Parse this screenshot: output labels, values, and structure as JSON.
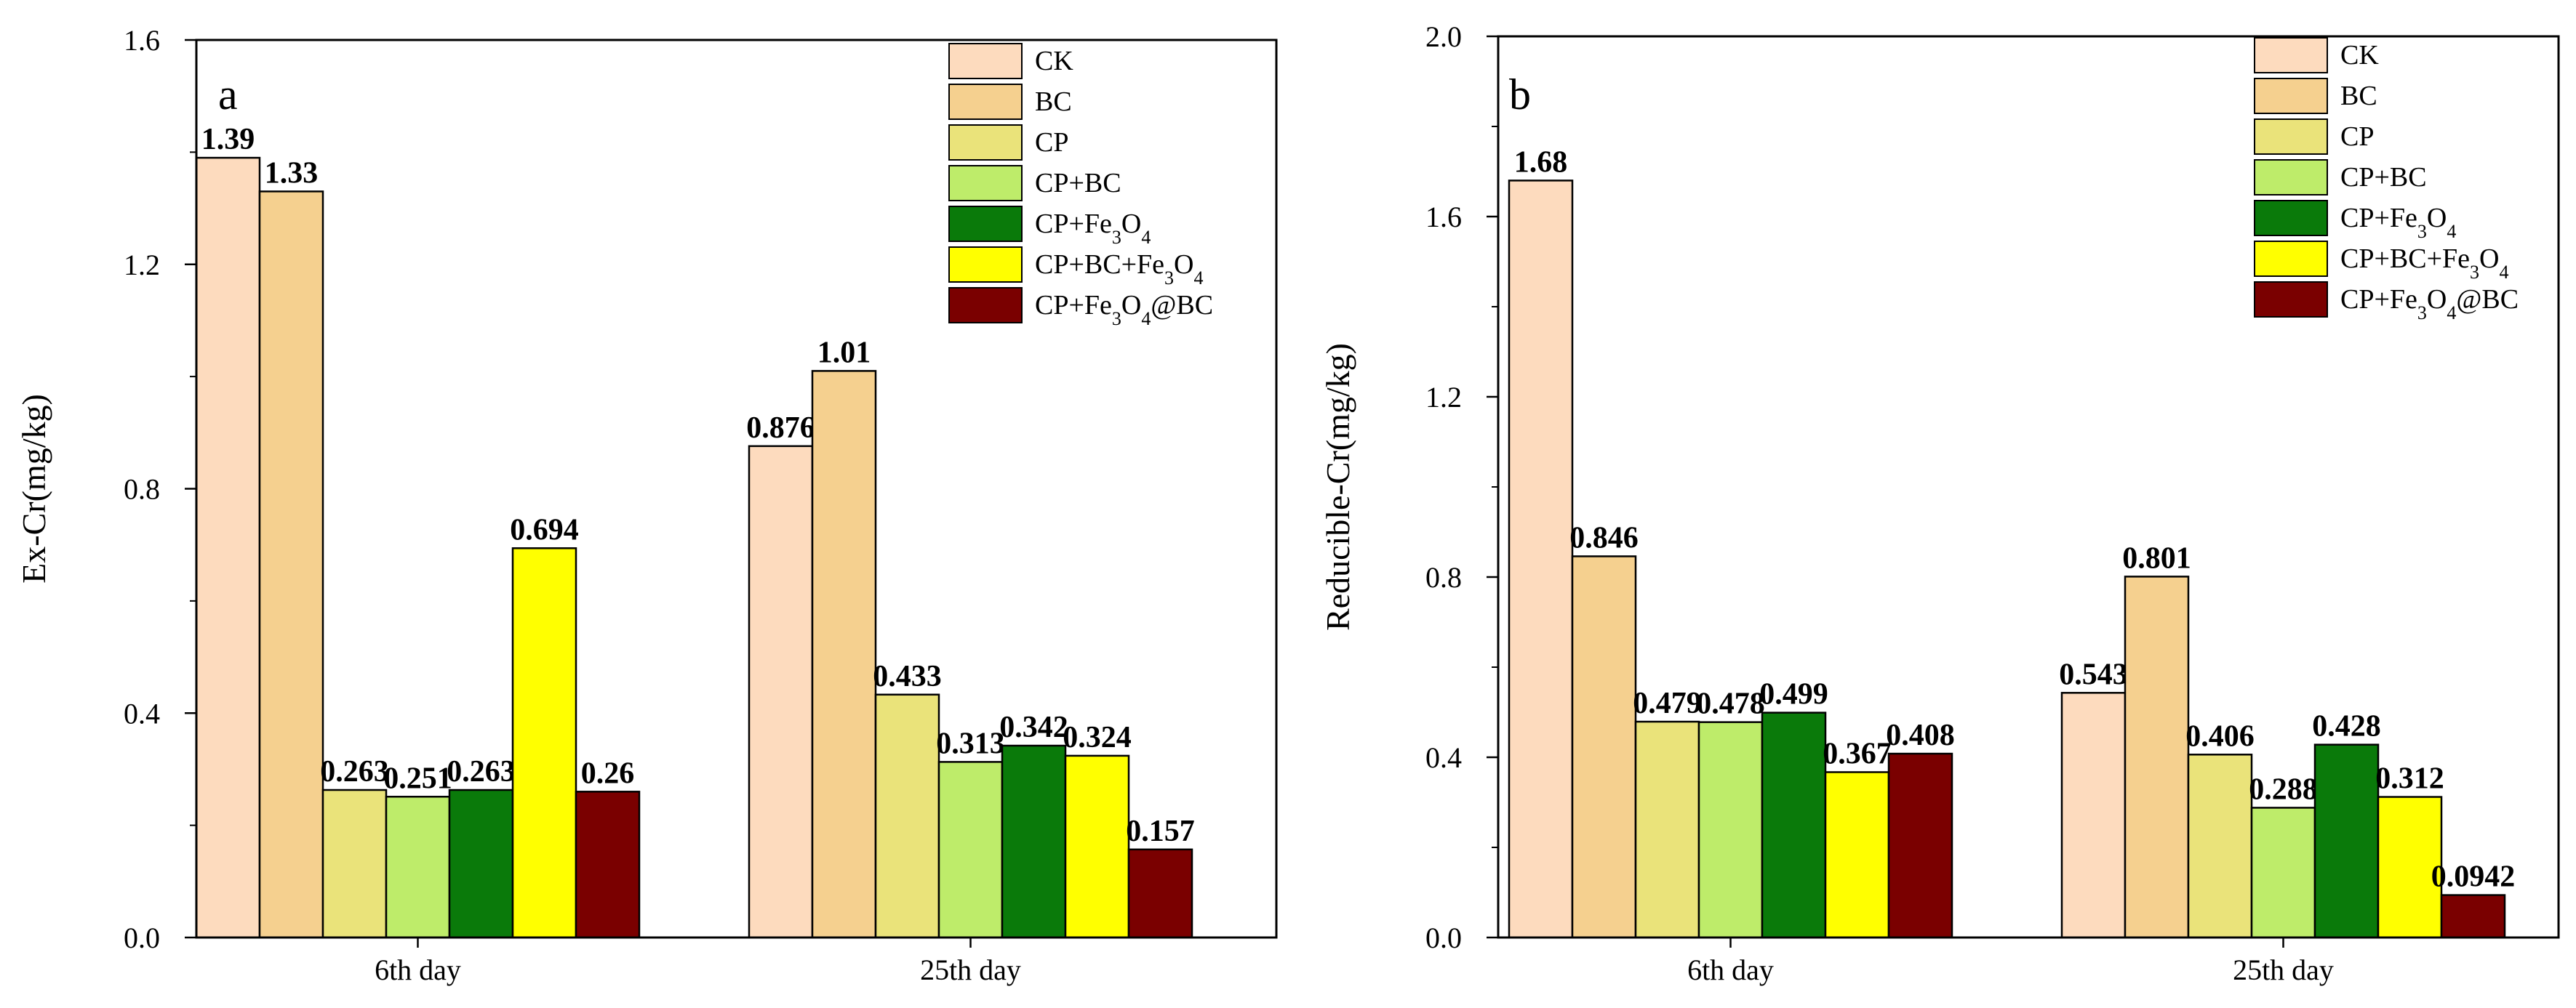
{
  "figure": {
    "series": [
      {
        "name": "CK",
        "color": "#FDDBBE"
      },
      {
        "name": "BC",
        "color": "#F5D08F"
      },
      {
        "name": "CP",
        "color": "#EAE37A"
      },
      {
        "name": "CP+BC",
        "color": "#BEEC6A"
      },
      {
        "name": "CP+Fe3O4",
        "color": "#0A7A0A"
      },
      {
        "name": "CP+BC+Fe3O4",
        "color": "#FFFF00"
      },
      {
        "name": "CP+Fe3O4@BC",
        "color": "#7A0000"
      }
    ]
  },
  "chart_data": [
    {
      "type": "bar",
      "panel": "a",
      "ylabel": "Ex-Cr(mg/kg)",
      "xlabel": "",
      "ylim": [
        0,
        1.6
      ],
      "yticks": [
        "0.0",
        "0.4",
        "0.8",
        "1.2",
        "1.6"
      ],
      "categories": [
        "6th day",
        "25th day"
      ],
      "legend_position": "top-right",
      "grid": false,
      "series": [
        {
          "name": "CK",
          "values": [
            1.39,
            0.876
          ],
          "labels": [
            "1.39",
            "0.876"
          ]
        },
        {
          "name": "BC",
          "values": [
            1.33,
            1.01
          ],
          "labels": [
            "1.33",
            "1.01"
          ]
        },
        {
          "name": "CP",
          "values": [
            0.263,
            0.433
          ],
          "labels": [
            "0.263",
            "0.433"
          ]
        },
        {
          "name": "CP+BC",
          "values": [
            0.251,
            0.313
          ],
          "labels": [
            "0.251",
            "0.313"
          ]
        },
        {
          "name": "CP+Fe3O4",
          "values": [
            0.263,
            0.342
          ],
          "labels": [
            "0.263",
            "0.342"
          ]
        },
        {
          "name": "CP+BC+Fe3O4",
          "values": [
            0.694,
            0.324
          ],
          "labels": [
            "0.694",
            "0.324"
          ]
        },
        {
          "name": "CP+Fe3O4@BC",
          "values": [
            0.26,
            0.157
          ],
          "labels": [
            "0.26",
            "0.157"
          ]
        }
      ]
    },
    {
      "type": "bar",
      "panel": "b",
      "ylabel": "Reducible-Cr(mg/kg)",
      "xlabel": "",
      "ylim": [
        0,
        2.0
      ],
      "yticks": [
        "0.0",
        "0.4",
        "0.8",
        "1.2",
        "1.6",
        "2.0"
      ],
      "categories": [
        "6th day",
        "25th day"
      ],
      "legend_position": "top-right",
      "grid": false,
      "series": [
        {
          "name": "CK",
          "values": [
            1.68,
            0.543
          ],
          "labels": [
            "1.68",
            "0.543"
          ]
        },
        {
          "name": "BC",
          "values": [
            0.846,
            0.801
          ],
          "labels": [
            "0.846",
            "0.801"
          ]
        },
        {
          "name": "CP",
          "values": [
            0.479,
            0.406
          ],
          "labels": [
            "0.479",
            "0.406"
          ]
        },
        {
          "name": "CP+BC",
          "values": [
            0.478,
            0.288
          ],
          "labels": [
            "0.478",
            "0.288"
          ]
        },
        {
          "name": "CP+Fe3O4",
          "values": [
            0.499,
            0.428
          ],
          "labels": [
            "0.499",
            "0.428"
          ]
        },
        {
          "name": "CP+BC+Fe3O4",
          "values": [
            0.367,
            0.312
          ],
          "labels": [
            "0.367",
            "0.312"
          ]
        },
        {
          "name": "CP+Fe3O4@BC",
          "values": [
            0.408,
            0.0942
          ],
          "labels": [
            "0.408",
            "0.0942"
          ]
        }
      ]
    }
  ]
}
